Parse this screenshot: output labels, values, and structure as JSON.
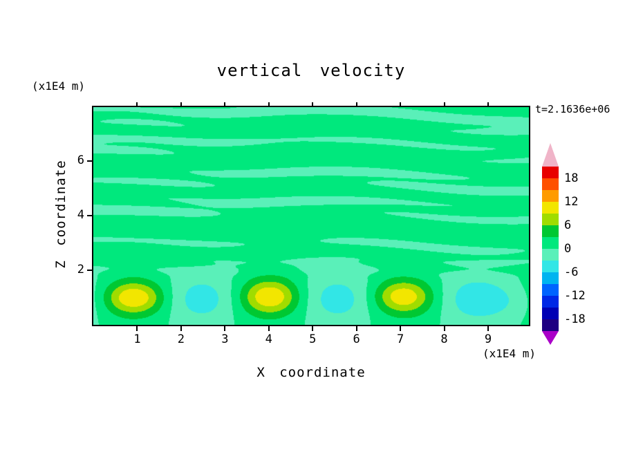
{
  "title": "vertical velocity",
  "time_label": "t=2.1636e+06",
  "axes": {
    "x": {
      "label": "X coordinate",
      "unit": "(x1E4 m)",
      "min": 0,
      "max": 9.93,
      "ticks": [
        1,
        2,
        3,
        4,
        5,
        6,
        7,
        8,
        9
      ]
    },
    "y": {
      "label": "Z coordinate",
      "unit": "(x1E4 m)",
      "min": 0,
      "max": 7.96,
      "ticks": [
        2,
        4,
        6
      ]
    }
  },
  "colorbar": {
    "labels": [
      "18",
      "12",
      "6",
      "0",
      "-6",
      "-12",
      "-18"
    ],
    "arrow_top_color": "#f0b4c8",
    "arrow_bottom_color": "#aa00c8"
  },
  "chart_data": {
    "type": "heatmap",
    "title": "vertical velocity",
    "xlabel": "X coordinate (x1E4 m)",
    "ylabel": "Z coordinate (x1E4 m)",
    "time": "t=2.1636e+06",
    "x_range": [
      0,
      9.93
    ],
    "z_range": [
      0,
      7.96
    ],
    "x_ticks": [
      1,
      2,
      3,
      4,
      5,
      6,
      7,
      8,
      9
    ],
    "z_ticks": [
      2,
      4,
      6
    ],
    "contour_interval": 3,
    "levels": [
      -21,
      -18,
      -15,
      -12,
      -9,
      -6,
      -3,
      0,
      3,
      6,
      9,
      12,
      15,
      18,
      21
    ],
    "band_colors_low_to_high": [
      "#1e0082",
      "#0000b4",
      "#0028e6",
      "#0064ff",
      "#00b4f0",
      "#32e6e6",
      "#5af0b9",
      "#00e87d",
      "#00c832",
      "#a0dc00",
      "#f2e600",
      "#ff9b00",
      "#ff5000",
      "#e80000"
    ],
    "underflow_color": "#aa00c8",
    "overflow_color": "#f0b4c8",
    "grid": false,
    "legend_position": "right-colorbar",
    "features": {
      "updraft_cores": [
        {
          "x": 0.9,
          "z": 1.0,
          "w_max": 11.5
        },
        {
          "x": 4.0,
          "z": 1.05,
          "w_max": 11.5
        },
        {
          "x": 7.05,
          "z": 1.05,
          "w_max": 11.0
        }
      ],
      "downdraft_cores": [
        {
          "x": 2.5,
          "z": 0.9,
          "w_min": -4.5
        },
        {
          "x": 5.55,
          "z": 0.9,
          "w_min": -4.5
        },
        {
          "x": 8.7,
          "z": 0.9,
          "w_min": -5.0
        },
        {
          "x": 9.7,
          "z": 0.9,
          "w_min": -4.0
        }
      ],
      "background": "weak horizontal wave streaks with |w|<3 filling the region 2<z<8; field near 0 elsewhere"
    },
    "field_model": {
      "layer": {
        "amp": 4.4,
        "period": 3.1,
        "x0": 0.92,
        "z0": 0.95,
        "sz": 0.85
      },
      "plumes": [
        {
          "x": 0.92,
          "z": 1.0,
          "sx": 0.62,
          "sz": 0.55,
          "a": 7.5
        },
        {
          "x": 4.02,
          "z": 1.05,
          "sx": 0.6,
          "sz": 0.6,
          "a": 7.5
        },
        {
          "x": 7.05,
          "z": 1.05,
          "sx": 0.6,
          "sz": 0.55,
          "a": 7.0
        },
        {
          "x": 9.75,
          "z": 0.9,
          "sx": 0.85,
          "sz": 0.7,
          "a": -3.6
        }
      ],
      "streaks": {
        "base": 0.55,
        "a_low": 0.5,
        "k_low": 2.4,
        "a_mid": 0.85,
        "k_mid": 5.3,
        "a_high": 0.8,
        "k_high": 11.8
      }
    }
  }
}
